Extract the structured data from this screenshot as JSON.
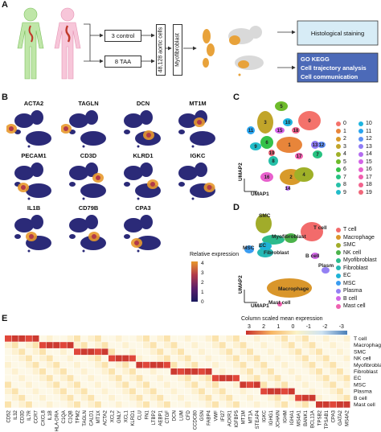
{
  "panels": {
    "a": "A",
    "b": "B",
    "c": "C",
    "d": "D",
    "e": "E"
  },
  "panelA": {
    "control_box": "3 control",
    "taa_box": "8 TAA",
    "cells_box": "48,128 aortic cells",
    "myo_box": "Myofibroblast",
    "histo_box": "Histological staining",
    "analysis_lines": [
      "GO KEGG",
      "Cell trajectory analysis",
      "Cell communication"
    ]
  },
  "panelB": {
    "genes": [
      "ACTA2",
      "TAGLN",
      "DCN",
      "MT1M",
      "PECAM1",
      "CD3D",
      "KLRD1",
      "IGKC",
      "IL1B",
      "CD79B",
      "CPA3"
    ],
    "colorbar_title": "Relative expression",
    "colorbar_ticks": [
      "4",
      "3",
      "2",
      "1",
      "0"
    ]
  },
  "panelC": {
    "axis_x": "UMAP1",
    "axis_y": "UMAP2",
    "clusters": [
      "0",
      "1",
      "2",
      "3",
      "4",
      "5",
      "6",
      "7",
      "8",
      "9",
      "10",
      "11",
      "12",
      "13",
      "14",
      "15",
      "16",
      "17",
      "18",
      "19"
    ],
    "cluster_colors": [
      "#f4726b",
      "#e8853a",
      "#d89a2a",
      "#c1a52a",
      "#9fb028",
      "#6ebb2b",
      "#35c24a",
      "#27c281",
      "#26c0a8",
      "#22bcc9",
      "#1eb4df",
      "#28a4ef",
      "#5d8ff5",
      "#8f7bf5",
      "#b46cf0",
      "#d363e6",
      "#e860cd",
      "#f05fae",
      "#f2638d",
      "#f0677a"
    ],
    "on_plot_labels": [
      "0",
      "1",
      "2",
      "3",
      "4",
      "5",
      "6",
      "7",
      "8",
      "9",
      "10",
      "11",
      "12",
      "13",
      "14",
      "15",
      "16",
      "17",
      "18",
      "19"
    ]
  },
  "panelD": {
    "axis_x": "UMAP1",
    "axis_y": "UMAP2",
    "cell_types": [
      "T cell",
      "Macrophage",
      "SMC",
      "NK cell",
      "Myofibroblast",
      "Fibroblast",
      "EC",
      "MSC",
      "Plasma",
      "B cell",
      "Mast cell"
    ],
    "cell_type_colors": [
      "#f26b6b",
      "#d9962b",
      "#a1ac2a",
      "#4cb34a",
      "#2dbb8c",
      "#26b8b4",
      "#1eb3d6",
      "#3a9cf0",
      "#9380f3",
      "#d166e6",
      "#ef62b0"
    ],
    "on_plot_labels": [
      "SMC",
      "T cell",
      "Myofibroblast",
      "EC",
      "MSC",
      "Fibroblast",
      "B cell",
      "Plasma",
      "Macrophage",
      "Mast cell"
    ]
  },
  "panelE": {
    "colorbar_title": "Column scaled mean expression",
    "colorbar_ticks": [
      "3",
      "2",
      "1",
      "0",
      "-1",
      "-2",
      "-3"
    ],
    "rows": [
      "T cell",
      "Macrophage",
      "SMC",
      "NK cell",
      "Myofibroblast",
      "Fibroblast",
      "EC",
      "MSC",
      "Plasma",
      "B cell",
      "Mast cell"
    ],
    "genes": [
      "CD52",
      "IL32",
      "CD3D",
      "IL7R",
      "CCR7",
      "CXCL8",
      "IL1B",
      "HLA-DRA",
      "C1QA",
      "C1QB",
      "TPM2",
      "TAGLN",
      "CALD1",
      "MT1X",
      "ACTA2",
      "XCL2",
      "GNLY",
      "XCL1",
      "KLRD1",
      "CLU",
      "FN1",
      "LTBP2",
      "AEBP1",
      "CTGF",
      "DCN",
      "LUM",
      "CFD",
      "CCDC80",
      "GSN",
      "FABP4",
      "VWF",
      "IFI27",
      "ACKR1",
      "IGFBP5",
      "MT1M",
      "MT1A",
      "STEAP4",
      "IGKC",
      "IGHG1",
      "JCHAIN",
      "IGHM",
      "IGHA1",
      "MS4A1",
      "BANK1",
      "BCL11A",
      "TPSB2",
      "TPSAB1",
      "CPA3",
      "GATA2",
      "MS4A2"
    ]
  },
  "chart_data": {
    "type": "heatmap",
    "title": "Column scaled mean expression",
    "rows": [
      "T cell",
      "Macrophage",
      "SMC",
      "NK cell",
      "Myofibroblast",
      "Fibroblast",
      "EC",
      "MSC",
      "Plasma",
      "B cell",
      "Mast cell"
    ],
    "columns": [
      "CD52",
      "IL32",
      "CD3D",
      "IL7R",
      "CCR7",
      "CXCL8",
      "IL1B",
      "HLA-DRA",
      "C1QA",
      "C1QB",
      "TPM2",
      "TAGLN",
      "CALD1",
      "MT1X",
      "ACTA2",
      "XCL2",
      "GNLY",
      "XCL1",
      "KLRD1",
      "CLU",
      "FN1",
      "LTBP2",
      "AEBP1",
      "CTGF",
      "DCN",
      "LUM",
      "CFD",
      "CCDC80",
      "GSN",
      "FABP4",
      "VWF",
      "IFI27",
      "ACKR1",
      "IGFBP5",
      "MT1M",
      "MT1A",
      "STEAP4",
      "IGKC",
      "IGHG1",
      "JCHAIN",
      "IGHM",
      "IGHA1",
      "MS4A1",
      "BANK1",
      "BCL11A",
      "TPSB2",
      "TPSAB1",
      "CPA3",
      "GATA2",
      "MS4A2"
    ],
    "high_value_columns_per_row": [
      [
        0,
        5
      ],
      [
        5,
        10
      ],
      [
        10,
        15
      ],
      [
        15,
        19
      ],
      [
        19,
        24
      ],
      [
        24,
        30
      ],
      [
        30,
        34
      ],
      [
        34,
        37
      ],
      [
        37,
        42
      ],
      [
        42,
        45
      ],
      [
        45,
        50
      ]
    ],
    "vmin": -3,
    "vmax": 3
  }
}
